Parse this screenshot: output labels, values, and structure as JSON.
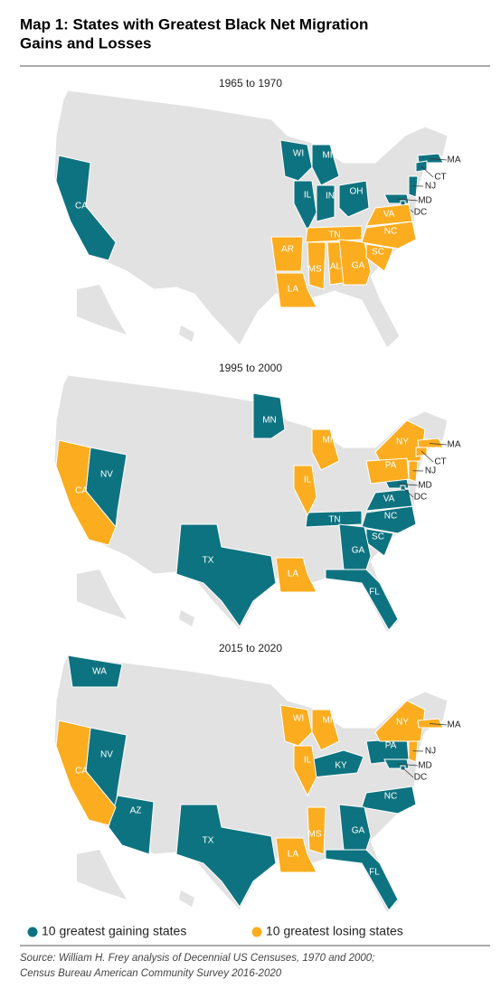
{
  "header": {
    "title_lines": [
      "Map 1: States with Greatest Black Net Migration",
      "Gains and Losses"
    ]
  },
  "legend": [
    {
      "label": "10 greatest gaining states",
      "color": "#0e7380"
    },
    {
      "label": "10 greatest losing states",
      "color": "#fbad1f"
    }
  ],
  "maps": [
    {
      "period": "1965 to 1970",
      "groups": [
        [
          "CA",
          "WI",
          "MI",
          "IL",
          "IN",
          "OH",
          "NJ",
          "MA",
          "CT",
          "MD",
          "DC"
        ],
        [
          "AR",
          "LA",
          "MS",
          "AL",
          "TN",
          "GA",
          "SC",
          "NC",
          "VA"
        ]
      ]
    },
    {
      "period": "1995 to 2000",
      "groups": [
        [
          "NV",
          "MN",
          "TX",
          "TN",
          "NC",
          "SC",
          "GA",
          "FL",
          "VA",
          "MD",
          "DC"
        ],
        [
          "CA",
          "MI",
          "IL",
          "NY",
          "PA",
          "NJ",
          "CT",
          "MA",
          "LA"
        ]
      ]
    },
    {
      "period": "2015 to 2020",
      "groups": [
        [
          "WA",
          "NV",
          "AZ",
          "TX",
          "KY",
          "NC",
          "GA",
          "FL",
          "PA",
          "MD",
          "DC"
        ],
        [
          "CA",
          "WI",
          "MI",
          "IL",
          "NY",
          "NJ",
          "MA",
          "LA",
          "MS"
        ]
      ]
    }
  ],
  "source": [
    "Source: William H. Frey analysis of Decennial US Censuses, 1970 and 2000;",
    "Census Bureau American Community Survey 2016-2020"
  ]
}
